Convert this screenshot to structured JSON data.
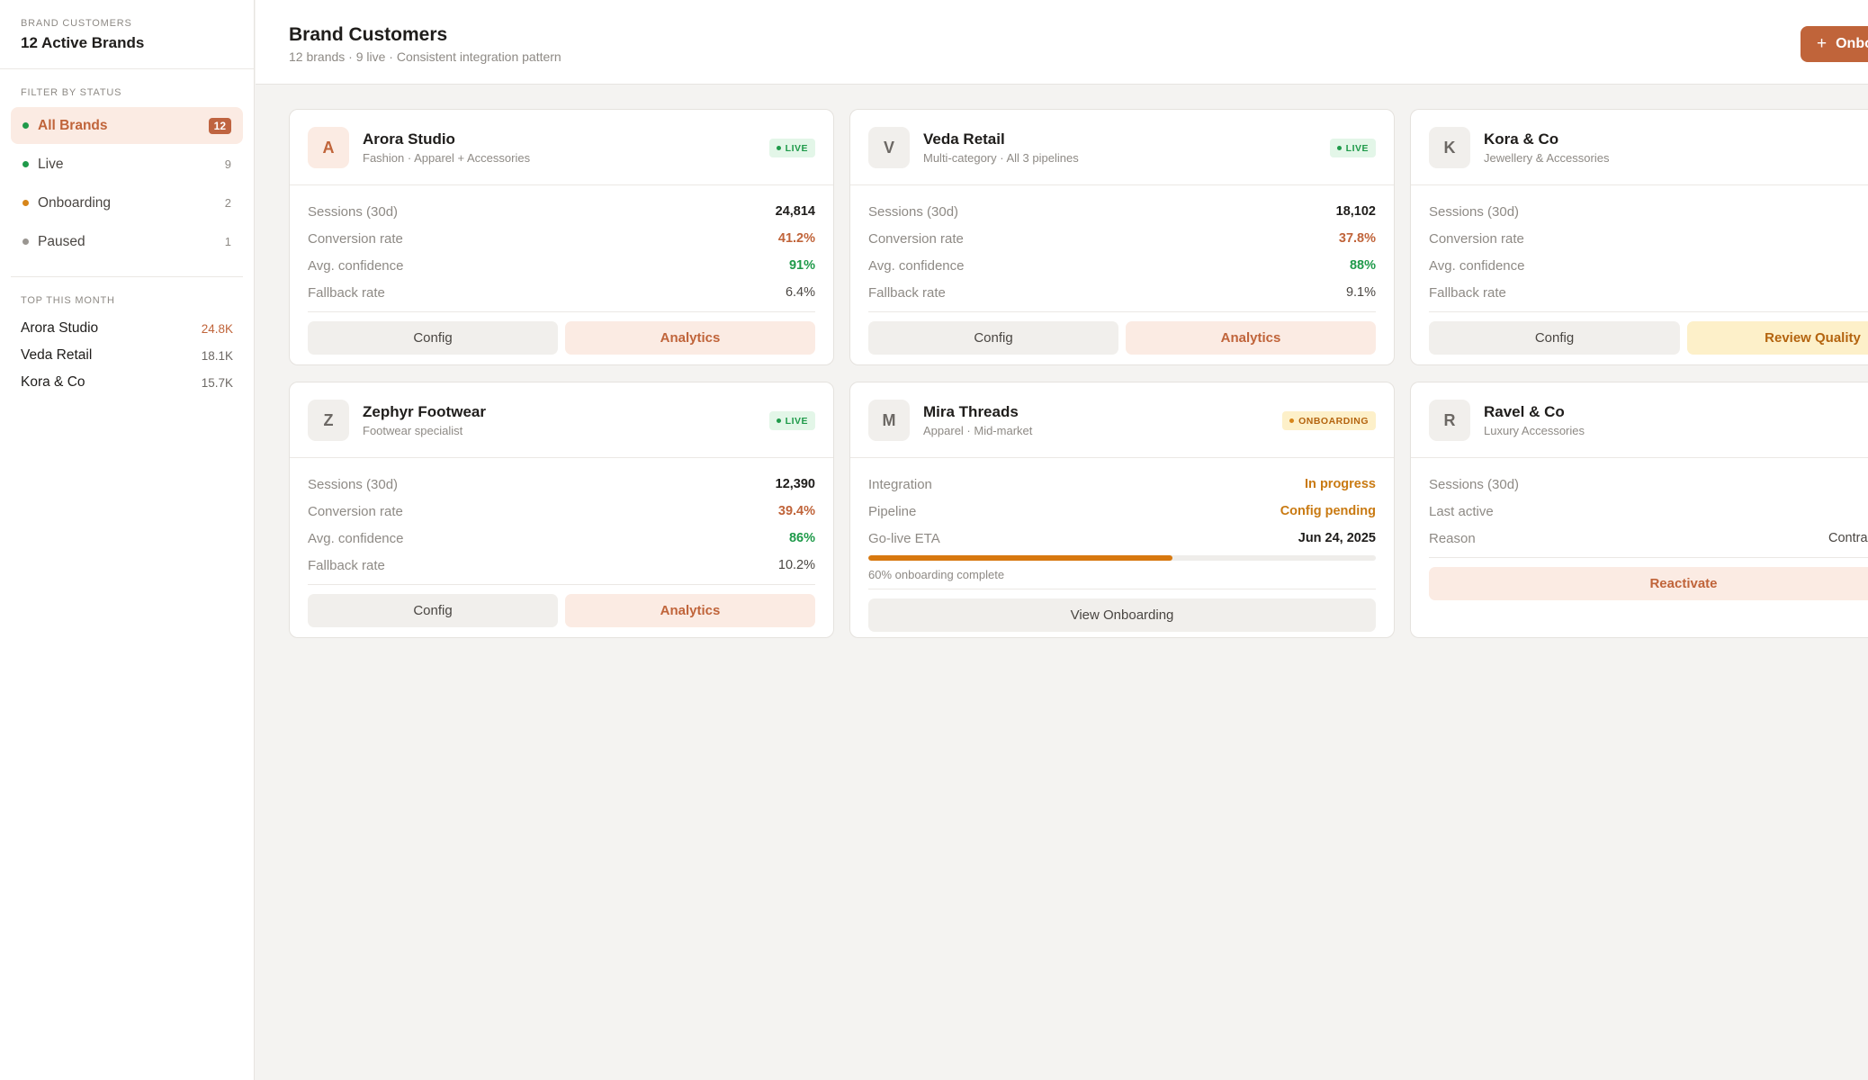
{
  "sidebar": {
    "kicker": "BRAND CUSTOMERS",
    "title": "12 Active Brands",
    "filter_label": "FILTER BY STATUS",
    "filters": [
      {
        "label": "All Brands",
        "count": "12",
        "color": "#1f9a4a"
      },
      {
        "label": "Live",
        "count": "9",
        "color": "#1f9a4a"
      },
      {
        "label": "Onboarding",
        "count": "2",
        "color": "#d7861b"
      },
      {
        "label": "Paused",
        "count": "1",
        "color": "#9a9691"
      }
    ],
    "top_label": "TOP THIS MONTH",
    "top": [
      {
        "name": "Arora Studio",
        "value": "24.8K"
      },
      {
        "name": "Veda Retail",
        "value": "18.1K"
      },
      {
        "name": "Kora & Co",
        "value": "15.7K"
      }
    ]
  },
  "header": {
    "title": "Brand Customers",
    "subtitle": "12 brands · 9 live · Consistent integration pattern",
    "onboard_button": "Onboard Brand",
    "plus_icon": "+"
  },
  "cards": [
    {
      "initial": "A",
      "name": "Arora Studio",
      "meta": "Fashion · Apparel + Accessories",
      "badge": "LIVE",
      "rows": [
        {
          "label": "Sessions (30d)",
          "value": "24,814"
        },
        {
          "label": "Conversion rate",
          "value": "41.2%"
        },
        {
          "label": "Avg. confidence",
          "value": "91%"
        },
        {
          "label": "Fallback rate",
          "value": "6.4%"
        }
      ],
      "actions": [
        "Config",
        "Analytics"
      ]
    },
    {
      "initial": "V",
      "name": "Veda Retail",
      "meta": "Multi-category · All 3 pipelines",
      "badge": "LIVE",
      "rows": [
        {
          "label": "Sessions (30d)",
          "value": "18,102"
        },
        {
          "label": "Conversion rate",
          "value": "37.8%"
        },
        {
          "label": "Avg. confidence",
          "value": "88%"
        },
        {
          "label": "Fallback rate",
          "value": "9.1%"
        }
      ],
      "actions": [
        "Config",
        "Analytics"
      ]
    },
    {
      "initial": "K",
      "name": "Kora & Co",
      "meta": "Jewellery & Accessories",
      "rows": [
        {
          "label": "Sessions (30d)",
          "value": ""
        },
        {
          "label": "Conversion rate",
          "value": ""
        },
        {
          "label": "Avg. confidence",
          "value": ""
        },
        {
          "label": "Fallback rate",
          "value": ""
        }
      ],
      "actions": [
        "Config",
        "Review Quality"
      ]
    },
    {
      "initial": "Z",
      "name": "Zephyr Footwear",
      "meta": "Footwear specialist",
      "badge": "LIVE",
      "rows": [
        {
          "label": "Sessions (30d)",
          "value": "12,390"
        },
        {
          "label": "Conversion rate",
          "value": "39.4%"
        },
        {
          "label": "Avg. confidence",
          "value": "86%"
        },
        {
          "label": "Fallback rate",
          "value": "10.2%"
        }
      ],
      "actions": [
        "Config",
        "Analytics"
      ]
    },
    {
      "initial": "M",
      "name": "Mira Threads",
      "meta": "Apparel · Mid-market",
      "badge": "ONBOARDING",
      "rows": [
        {
          "label": "Integration",
          "value": "In progress"
        },
        {
          "label": "Pipeline",
          "value": "Config pending"
        },
        {
          "label": "Go-live ETA",
          "value": "Jun 24, 2025"
        }
      ],
      "progress": 0.6,
      "progress_label": "60% onboarding complete",
      "actions": [
        "View Onboarding"
      ]
    },
    {
      "initial": "R",
      "name": "Ravel & Co",
      "meta": "Luxury Accessories",
      "rows": [
        {
          "label": "Sessions (30d)",
          "value": ""
        },
        {
          "label": "Last active",
          "value": ""
        },
        {
          "label": "Reason",
          "value": "Contra"
        }
      ],
      "actions": [
        "Reactivate"
      ]
    }
  ]
}
